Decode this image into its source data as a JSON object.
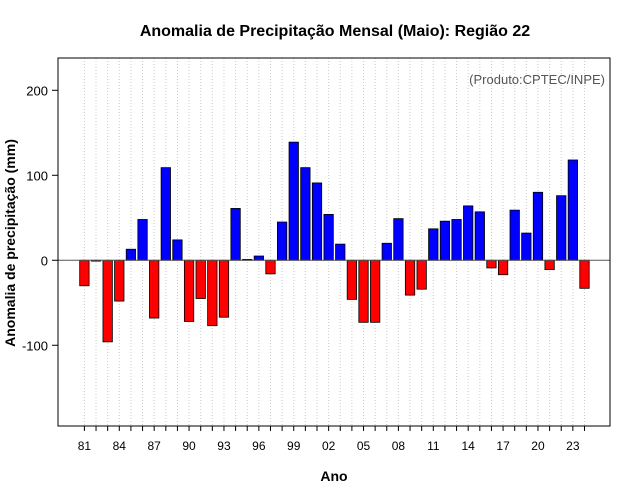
{
  "chart_data": {
    "type": "bar",
    "title": "Anomalia de Precipitação Mensal (Maio): Região 22",
    "xlabel": "Ano",
    "ylabel": "Anomalia de precipitação (mm)",
    "annotation": "(Produto:CPTEC/INPE)",
    "ylim": [
      -195,
      238
    ],
    "yticks": [
      -100,
      0,
      100,
      200
    ],
    "years": [
      1981,
      1982,
      1983,
      1984,
      1985,
      1986,
      1987,
      1988,
      1989,
      1990,
      1991,
      1992,
      1993,
      1994,
      1995,
      1996,
      1997,
      1998,
      1999,
      2000,
      2001,
      2002,
      2003,
      2004,
      2005,
      2006,
      2007,
      2008,
      2009,
      2010,
      2011,
      2012,
      2013,
      2014,
      2015,
      2016,
      2017,
      2018,
      2019,
      2020,
      2021,
      2022,
      2023,
      2024
    ],
    "values": [
      -30,
      -1,
      -96,
      -48,
      13,
      48,
      -68,
      109,
      24,
      -72,
      -45,
      -77,
      -67,
      61,
      1,
      5,
      -16,
      45,
      139,
      109,
      91,
      54,
      19,
      -46,
      -73,
      -73,
      20,
      49,
      -41,
      -34,
      37,
      46,
      48,
      64,
      57,
      -9,
      -17,
      59,
      32,
      80,
      -11,
      76,
      118,
      -33
    ],
    "tick_labels": [
      "81",
      "84",
      "87",
      "90",
      "93",
      "96",
      "99",
      "02",
      "05",
      "08",
      "11",
      "14",
      "17",
      "20",
      "23"
    ],
    "grid": "vertical dotted",
    "colors": {
      "positive": "#0000ff",
      "negative": "#ff0000",
      "zero_line": "#555555",
      "frame": "#000000",
      "grid": "#cccccc",
      "annotation": "#555555"
    }
  }
}
